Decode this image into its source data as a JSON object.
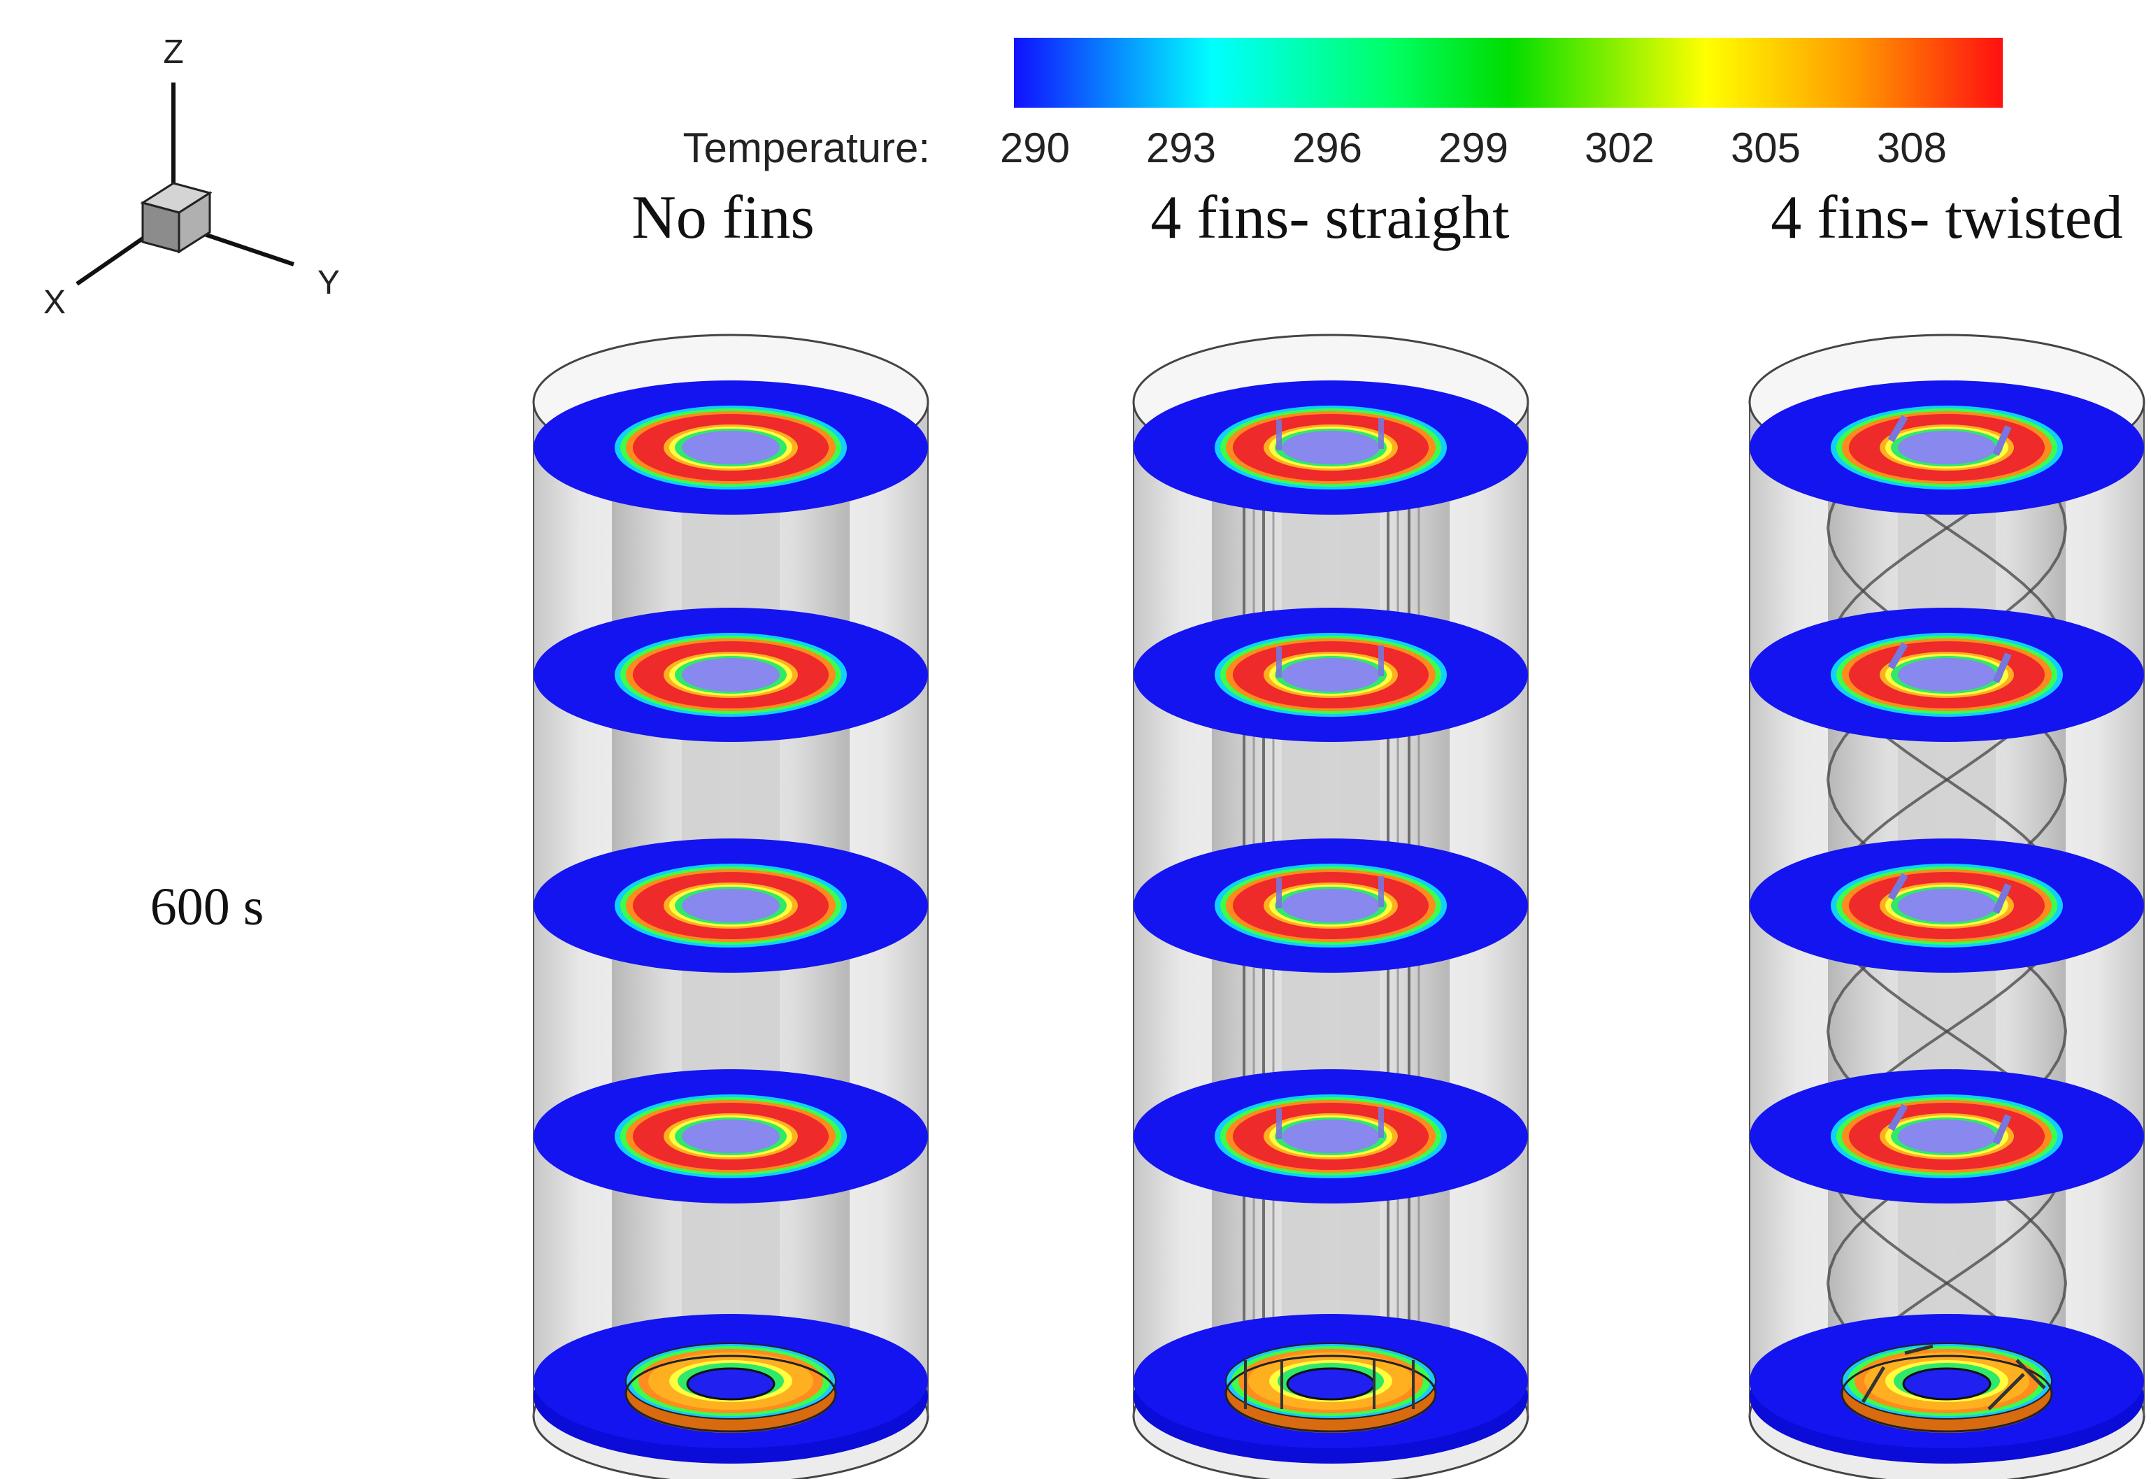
{
  "axes_triad": {
    "z": "Z",
    "x": "X",
    "y": "Y"
  },
  "colorbar": {
    "label": "Temperature:",
    "ticks": [
      "290",
      "293",
      "296",
      "299",
      "302",
      "305",
      "308"
    ],
    "colors": [
      "#1010ff",
      "#00ffff",
      "#00ff66",
      "#00dd00",
      "#ffff00",
      "#ff9900",
      "#ff1010"
    ]
  },
  "time_label": "600 s",
  "panels": [
    {
      "title": "No fins",
      "fins": "none"
    },
    {
      "title": "4 fins- straight",
      "fins": "straight"
    },
    {
      "title": "4 fins- twisted",
      "fins": "twisted"
    }
  ],
  "colors": {
    "cold": "#1414f0",
    "hot": "#ee2a2a",
    "shell": "#c8c8c8"
  }
}
